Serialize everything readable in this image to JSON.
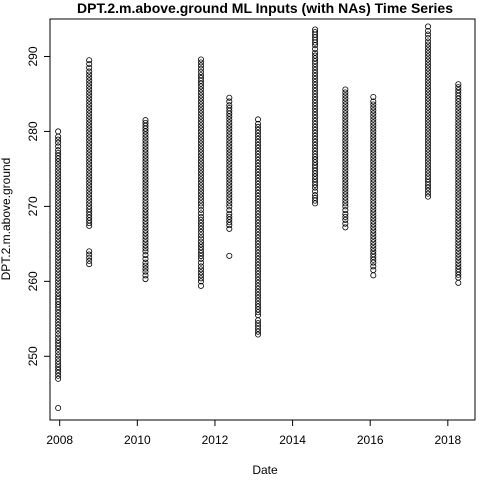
{
  "chart_data": {
    "type": "scatter",
    "title": "DPT.2.m.above.ground ML Inputs (with NAs) Time Series",
    "xlabel": "Date",
    "ylabel": "DPT.2.m.above.ground",
    "xlim": [
      2007.75,
      2018.7
    ],
    "ylim": [
      241.5,
      295.0
    ],
    "x_ticks": [
      2008,
      2010,
      2012,
      2014,
      2016,
      2018
    ],
    "y_ticks": [
      250,
      260,
      270,
      280,
      290
    ],
    "grid": false,
    "legend": "none",
    "marker": "open-circle",
    "marker_color": "#000000",
    "series": [
      {
        "x": 2007.96,
        "values": [
          243.1,
          247.0,
          247.8,
          249.7,
          251.0,
          252.5,
          253.4,
          255.0,
          256.2,
          258.0,
          260.0,
          262.0,
          264.0,
          266.0,
          268.0,
          270.0,
          272.0,
          274.0,
          276.0,
          277.5,
          278.5,
          279.3,
          280.0
        ]
      },
      {
        "x": 2008.76,
        "values": [
          262.3,
          264.0,
          267.4,
          268.5,
          270.0,
          272.0,
          274.0,
          276.0,
          278.0,
          280.0,
          282.0,
          284.0,
          286.0,
          288.0,
          289.0,
          289.5
        ]
      },
      {
        "x": 2010.21,
        "values": [
          260.3,
          261.3,
          262.5,
          263.5,
          264.0,
          266.0,
          268.0,
          270.0,
          272.0,
          274.0,
          276.0,
          278.0,
          280.0,
          281.5
        ]
      },
      {
        "x": 2011.64,
        "values": [
          259.4,
          260.0,
          262.0,
          263.0,
          265.3,
          267.0,
          268.6,
          270.0,
          272.0,
          274.0,
          276.0,
          278.0,
          280.0,
          282.0,
          284.0,
          286.0,
          287.5,
          288.8,
          289.6
        ]
      },
      {
        "x": 2012.37,
        "values": [
          263.4,
          267.0,
          267.5,
          269.0,
          270.0,
          272.0,
          274.0,
          276.0,
          278.0,
          280.0,
          282.0,
          283.5,
          284.5
        ]
      },
      {
        "x": 2013.11,
        "values": [
          252.9,
          254.8,
          255.5,
          257.0,
          259.0,
          261.0,
          263.0,
          265.0,
          267.0,
          269.0,
          271.0,
          273.0,
          275.0,
          277.0,
          279.0,
          281.0,
          281.6
        ]
      },
      {
        "x": 2014.58,
        "values": [
          270.4,
          271.5,
          272.5,
          274.0,
          275.5,
          277.0,
          279.0,
          281.0,
          283.0,
          285.0,
          287.0,
          289.0,
          290.5,
          291.5,
          293.6
        ]
      },
      {
        "x": 2015.36,
        "values": [
          267.2,
          268.2,
          269.0,
          270.0,
          272.0,
          274.0,
          276.0,
          278.0,
          280.0,
          282.0,
          284.0,
          285.6
        ]
      },
      {
        "x": 2016.08,
        "values": [
          260.8,
          261.5,
          262.5,
          264.0,
          266.0,
          268.0,
          270.0,
          272.0,
          274.0,
          276.0,
          278.0,
          280.0,
          282.0,
          284.0,
          284.6
        ]
      },
      {
        "x": 2017.49,
        "values": [
          271.3,
          272.5,
          274.0,
          276.0,
          278.0,
          280.0,
          282.0,
          284.0,
          286.0,
          288.0,
          290.0,
          292.0,
          293.4,
          294.0
        ]
      },
      {
        "x": 2018.27,
        "values": [
          259.8,
          260.5,
          262.0,
          264.0,
          266.0,
          268.0,
          270.0,
          272.0,
          274.0,
          276.0,
          278.0,
          280.0,
          282.0,
          284.0,
          285.5,
          286.3
        ]
      }
    ]
  }
}
